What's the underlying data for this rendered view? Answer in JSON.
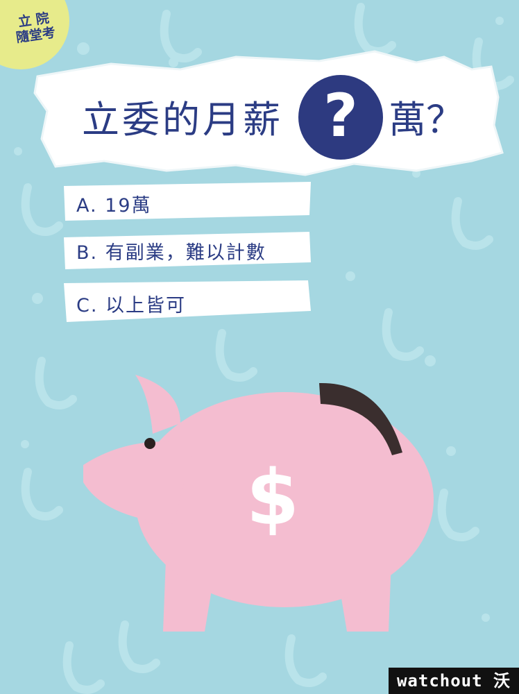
{
  "badge": {
    "line1": "立 院",
    "line2": "隨堂考"
  },
  "title": {
    "before": "立委的月薪",
    "mark": "?",
    "after": "萬？"
  },
  "options": [
    {
      "label": "A. 19萬"
    },
    {
      "label": "B. 有副業，難以計數"
    },
    {
      "label": "C. 以上皆可"
    }
  ],
  "pig": {
    "symbol": "$"
  },
  "logo": {
    "text": "watchout 沃草"
  },
  "colors": {
    "background": "#a5d7e1",
    "badge": "#e7eb8b",
    "navy": "#2b3c84",
    "pig": "#f4bdd0",
    "slot": "#3a2e2e"
  }
}
